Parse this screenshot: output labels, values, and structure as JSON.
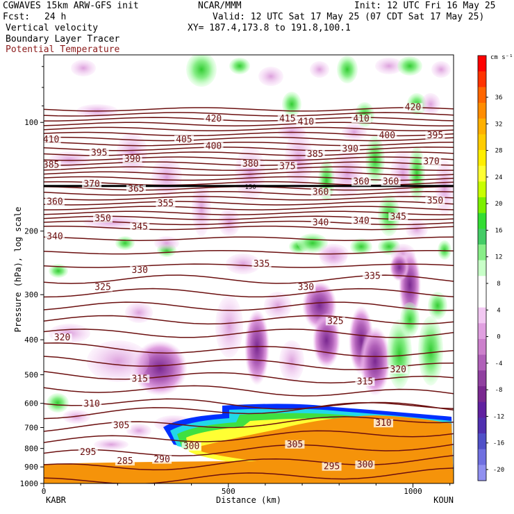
{
  "header": {
    "model": "CGWAVES 15km ARW-GFS init",
    "fcst_label": "Fcst:",
    "fcst_value": "24 h",
    "center": "NCAR/MMM",
    "init": "Init: 12 UTC Fri 16 May 25",
    "valid": "Valid: 12 UTC Sat 17 May 25 (07 CDT Sat 17 May 25)",
    "xy": "XY= 187.4,173.8 to 191.8,100.1",
    "field1": "Vertical velocity",
    "field2": "Boundary Layer Tracer",
    "field3": "Potential Temperature"
  },
  "colors": {
    "theta_contour": "#6b0f0f",
    "pbl_tracer_edge": "#0030ff",
    "pbl_fill": "#f5930a"
  },
  "chart_data": {
    "type": "heatmap",
    "ylabel": "Pressure (hPa), log scale",
    "xlabel": "Distance (km)",
    "x_start_label": "KABR",
    "x_end_label": "KOUN",
    "xlim": [
      0,
      1110
    ],
    "x_ticks": [
      "0",
      "500",
      "1000"
    ],
    "ylim": [
      1000,
      65
    ],
    "y_scale": "log",
    "y_ticks": [
      "100",
      "200",
      "300",
      "400",
      "500",
      "600",
      "700",
      "800",
      "900",
      "1000"
    ],
    "colorbar": {
      "unit": "cm s⁻¹",
      "labels": [
        "36",
        "32",
        "28",
        "24",
        "20",
        "16",
        "12",
        "8",
        "4",
        "0",
        "-4",
        "-8",
        "-12",
        "-16",
        "-20"
      ],
      "colors": [
        "#ff0000",
        "#ff3300",
        "#ff6600",
        "#ff8c00",
        "#ffb000",
        "#ffcc00",
        "#ffee00",
        "#ffff33",
        "#c8ff00",
        "#7cf000",
        "#33dd33",
        "#44cc66",
        "#88ee88",
        "#c8ffc8",
        "#ffffff",
        "#ffffff",
        "#f2c8f2",
        "#e0a0e0",
        "#cc80cc",
        "#b060b8",
        "#9040a0",
        "#7a2890",
        "#6020a0",
        "#5030b0",
        "#5050c8",
        "#7070e0",
        "#9090f0"
      ]
    },
    "theta_levels": [
      {
        "value": "410",
        "x": 20,
        "p": 113
      },
      {
        "value": "420",
        "x": 460,
        "p": 99
      },
      {
        "value": "415",
        "x": 660,
        "p": 99
      },
      {
        "value": "410",
        "x": 710,
        "p": 101
      },
      {
        "value": "410",
        "x": 860,
        "p": 99
      },
      {
        "value": "420",
        "x": 1000,
        "p": 92
      },
      {
        "value": "405",
        "x": 380,
        "p": 113
      },
      {
        "value": "400",
        "x": 460,
        "p": 118
      },
      {
        "value": "400",
        "x": 930,
        "p": 110
      },
      {
        "value": "395",
        "x": 150,
        "p": 123
      },
      {
        "value": "395",
        "x": 1060,
        "p": 110
      },
      {
        "value": "390",
        "x": 240,
        "p": 128
      },
      {
        "value": "390",
        "x": 830,
        "p": 120
      },
      {
        "value": "385",
        "x": 20,
        "p": 133
      },
      {
        "value": "385",
        "x": 735,
        "p": 124
      },
      {
        "value": "380",
        "x": 560,
        "p": 132
      },
      {
        "value": "375",
        "x": 660,
        "p": 134
      },
      {
        "value": "370",
        "x": 130,
        "p": 150
      },
      {
        "value": "370",
        "x": 1050,
        "p": 130
      },
      {
        "value": "365",
        "x": 250,
        "p": 155
      },
      {
        "value": "360",
        "x": 30,
        "p": 168
      },
      {
        "value": "360",
        "x": 750,
        "p": 158
      },
      {
        "value": "360",
        "x": 860,
        "p": 148
      },
      {
        "value": "360",
        "x": 940,
        "p": 148
      },
      {
        "value": "355",
        "x": 330,
        "p": 170
      },
      {
        "value": "350",
        "x": 160,
        "p": 187
      },
      {
        "value": "350",
        "x": 1060,
        "p": 167
      },
      {
        "value": "345",
        "x": 260,
        "p": 197
      },
      {
        "value": "345",
        "x": 960,
        "p": 185
      },
      {
        "value": "340",
        "x": 30,
        "p": 210
      },
      {
        "value": "340",
        "x": 750,
        "p": 192
      },
      {
        "value": "340",
        "x": 860,
        "p": 190
      },
      {
        "value": "335",
        "x": 590,
        "p": 250
      },
      {
        "value": "335",
        "x": 890,
        "p": 270
      },
      {
        "value": "330",
        "x": 260,
        "p": 260
      },
      {
        "value": "330",
        "x": 710,
        "p": 290
      },
      {
        "value": "325",
        "x": 160,
        "p": 290
      },
      {
        "value": "325",
        "x": 790,
        "p": 360
      },
      {
        "value": "320",
        "x": 50,
        "p": 400
      },
      {
        "value": "320",
        "x": 960,
        "p": 490
      },
      {
        "value": "315",
        "x": 260,
        "p": 520
      },
      {
        "value": "315",
        "x": 870,
        "p": 530
      },
      {
        "value": "310",
        "x": 130,
        "p": 610
      },
      {
        "value": "310",
        "x": 920,
        "p": 690
      },
      {
        "value": "305",
        "x": 210,
        "p": 700
      },
      {
        "value": "305",
        "x": 680,
        "p": 790
      },
      {
        "value": "300",
        "x": 400,
        "p": 800
      },
      {
        "value": "300",
        "x": 870,
        "p": 900
      },
      {
        "value": "295",
        "x": 120,
        "p": 830
      },
      {
        "value": "295",
        "x": 780,
        "p": 910
      },
      {
        "value": "290",
        "x": 320,
        "p": 870
      },
      {
        "value": "285",
        "x": 220,
        "p": 880
      }
    ],
    "tropopause_label": "150",
    "tropopause_p": 150
  }
}
